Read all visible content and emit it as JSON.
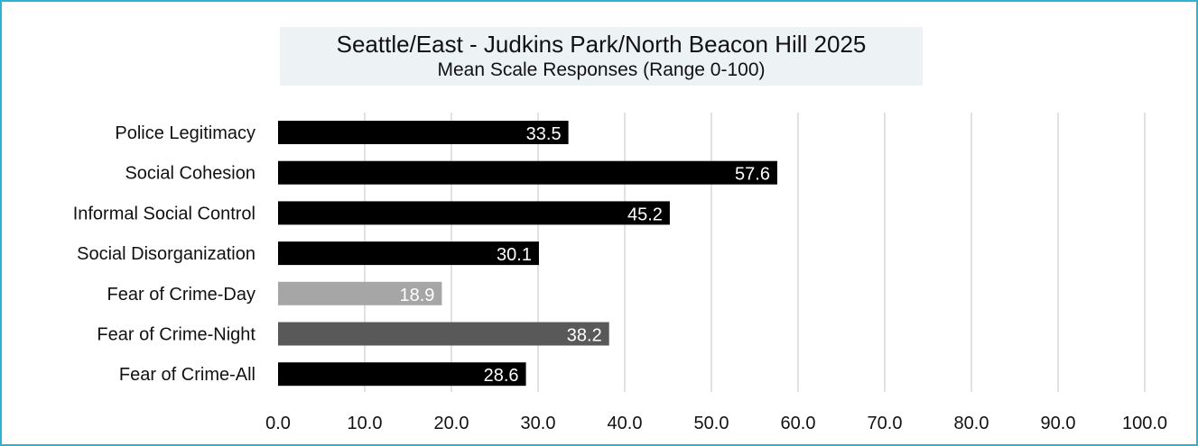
{
  "chart_data": {
    "type": "bar",
    "orientation": "horizontal",
    "title": "Seattle/East - Judkins Park/North Beacon Hill 2025",
    "subtitle": "Mean Scale Responses (Range 0-100)",
    "categories": [
      "Police Legitimacy",
      "Social Cohesion",
      "Informal Social Control",
      "Social Disorganization",
      "Fear of Crime-Day",
      "Fear of Crime-Night",
      "Fear of Crime-All"
    ],
    "values": [
      33.5,
      57.6,
      45.2,
      30.1,
      18.9,
      38.2,
      28.6
    ],
    "value_labels": [
      "33.5",
      "57.6",
      "45.2",
      "30.1",
      "18.9",
      "38.2",
      "28.6"
    ],
    "bar_colors": [
      "#000000",
      "#000000",
      "#000000",
      "#000000",
      "#a6a6a6",
      "#595959",
      "#000000"
    ],
    "xlim": [
      0,
      100
    ],
    "xticks": [
      "0.0",
      "10.0",
      "20.0",
      "30.0",
      "40.0",
      "50.0",
      "60.0",
      "70.0",
      "80.0",
      "90.0",
      "100.0"
    ],
    "grid": true,
    "legend": "none"
  },
  "colors": {
    "frame_border": "#2bb3d1",
    "title_background": "#edf2f5",
    "gridline": "#d9d9d9"
  }
}
